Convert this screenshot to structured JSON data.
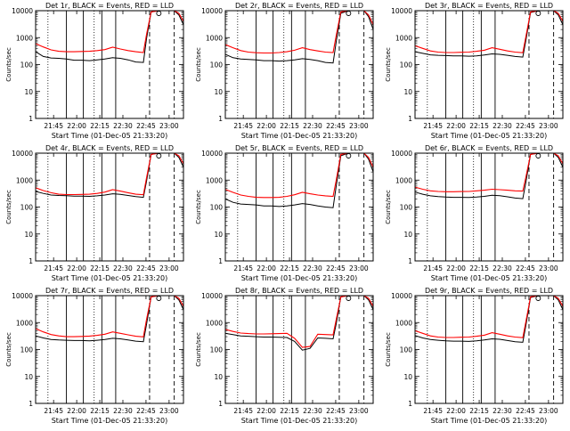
{
  "chart_data": {
    "type": "line",
    "layout": "3x3 grid of log-scale time-series panels",
    "ylabel": "Counts/sec",
    "xlabel": "Start Time (01-Dec-05 21:33:20)",
    "ylim": [
      1,
      10000
    ],
    "y_scale": "log",
    "y_ticks": [
      1,
      10,
      100,
      1000,
      10000
    ],
    "y_tick_labels": [
      "1",
      "10",
      "100",
      "1000",
      "10000"
    ],
    "x_unit": "minutes since 21:33:20",
    "xlim": [
      0,
      96
    ],
    "x_ticks": [
      11.67,
      26.67,
      41.67,
      56.67,
      71.67,
      86.67
    ],
    "x_tick_labels": [
      "21:45",
      "22:00",
      "22:15",
      "22:30",
      "22:45",
      "23:00"
    ],
    "series_colors": {
      "events": "#000000",
      "lld": "#ff0000"
    },
    "panels": [
      {
        "title": "Det 1r, BLACK = Events, RED = LLD",
        "x": [
          0,
          5,
          10,
          15,
          20,
          25,
          30,
          35,
          40,
          45,
          50,
          55,
          60,
          65,
          70,
          72,
          75,
          80,
          85,
          90,
          93,
          96
        ],
        "events": [
          300,
          200,
          175,
          170,
          160,
          145,
          145,
          140,
          150,
          160,
          180,
          170,
          150,
          125,
          120,
          900,
          9000,
          10000,
          10000,
          10000,
          7000,
          3000
        ],
        "lld": [
          600,
          450,
          350,
          310,
          300,
          300,
          305,
          310,
          330,
          360,
          440,
          380,
          330,
          300,
          280,
          1300,
          9000,
          10000,
          10000,
          10000,
          8000,
          4000
        ],
        "solid_lines": [
          20,
          31,
          43,
          52
        ],
        "dotted_lines": [
          8,
          38
        ],
        "dashed_lines": [
          74,
          90
        ]
      },
      {
        "title": "Det 2r, BLACK = Events, RED = LLD",
        "x": [
          0,
          5,
          10,
          15,
          20,
          25,
          30,
          35,
          40,
          45,
          50,
          55,
          60,
          65,
          70,
          72,
          75,
          80,
          85,
          90,
          93,
          96
        ],
        "events": [
          240,
          180,
          160,
          155,
          150,
          140,
          140,
          135,
          140,
          150,
          165,
          155,
          140,
          120,
          115,
          700,
          8000,
          10000,
          10000,
          10000,
          6000,
          2000
        ],
        "lld": [
          550,
          420,
          330,
          290,
          275,
          270,
          270,
          280,
          300,
          340,
          420,
          360,
          320,
          290,
          280,
          1200,
          9000,
          10000,
          10000,
          10000,
          7000,
          3000
        ],
        "solid_lines": [
          20,
          31,
          43,
          52
        ],
        "dotted_lines": [
          8,
          38
        ],
        "dashed_lines": [
          74,
          90
        ]
      },
      {
        "title": "Det 3r, BLACK = Events, RED = LLD",
        "x": [
          0,
          5,
          10,
          15,
          20,
          25,
          30,
          35,
          40,
          45,
          50,
          55,
          60,
          65,
          70,
          72,
          75,
          80,
          85,
          90,
          93,
          96
        ],
        "events": [
          300,
          260,
          230,
          220,
          215,
          210,
          210,
          205,
          210,
          225,
          250,
          240,
          220,
          200,
          190,
          800,
          8500,
          10000,
          10000,
          10000,
          7000,
          3000
        ],
        "lld": [
          500,
          400,
          320,
          290,
          280,
          280,
          285,
          290,
          310,
          340,
          420,
          370,
          320,
          290,
          275,
          1100,
          9000,
          10000,
          10000,
          10000,
          8000,
          4000
        ],
        "solid_lines": [
          20,
          31,
          43,
          52
        ],
        "dotted_lines": [
          8,
          38
        ],
        "dashed_lines": [
          74,
          90
        ]
      },
      {
        "title": "Det 4r, BLACK = Events, RED = LLD",
        "x": [
          0,
          5,
          10,
          15,
          20,
          25,
          30,
          35,
          40,
          45,
          50,
          55,
          60,
          65,
          70,
          72,
          75,
          80,
          85,
          90,
          93,
          96
        ],
        "events": [
          380,
          320,
          280,
          270,
          265,
          255,
          255,
          250,
          260,
          280,
          310,
          295,
          270,
          245,
          230,
          900,
          9000,
          10000,
          10000,
          10000,
          7000,
          3000
        ],
        "lld": [
          520,
          410,
          340,
          300,
          290,
          290,
          295,
          300,
          320,
          360,
          440,
          390,
          340,
          300,
          285,
          1200,
          9000,
          10000,
          10000,
          10000,
          8000,
          4000
        ],
        "solid_lines": [
          20,
          31,
          43,
          52
        ],
        "dotted_lines": [
          8,
          38
        ],
        "dashed_lines": [
          74,
          90
        ]
      },
      {
        "title": "Det 5r, BLACK = Events, RED = LLD",
        "x": [
          0,
          5,
          10,
          15,
          20,
          25,
          30,
          35,
          40,
          45,
          50,
          55,
          60,
          65,
          70,
          72,
          75,
          80,
          85,
          90,
          93,
          96
        ],
        "events": [
          200,
          150,
          130,
          125,
          120,
          110,
          110,
          105,
          110,
          120,
          135,
          125,
          110,
          100,
          95,
          600,
          8000,
          10000,
          10000,
          10000,
          6000,
          2000
        ],
        "lld": [
          450,
          350,
          280,
          250,
          230,
          225,
          225,
          230,
          250,
          285,
          350,
          310,
          280,
          260,
          250,
          1000,
          9000,
          10000,
          10000,
          10000,
          7000,
          3000
        ],
        "solid_lines": [
          20,
          31,
          43,
          52
        ],
        "dotted_lines": [
          8,
          38
        ],
        "dashed_lines": [
          74,
          90
        ]
      },
      {
        "title": "Det 6r, BLACK = Events, RED = LLD",
        "x": [
          0,
          5,
          10,
          15,
          20,
          25,
          30,
          35,
          40,
          45,
          50,
          55,
          60,
          65,
          70,
          72,
          75,
          80,
          85,
          90,
          93,
          96
        ],
        "events": [
          360,
          300,
          260,
          245,
          235,
          230,
          230,
          225,
          235,
          250,
          275,
          265,
          240,
          215,
          205,
          850,
          9000,
          10000,
          10000,
          10000,
          7000,
          3000
        ],
        "lld": [
          550,
          460,
          400,
          380,
          370,
          370,
          375,
          380,
          400,
          420,
          460,
          440,
          420,
          400,
          390,
          1300,
          9000,
          10000,
          10000,
          10000,
          8000,
          4000
        ],
        "solid_lines": [
          20,
          31,
          43,
          52
        ],
        "dotted_lines": [
          8,
          38
        ],
        "dashed_lines": [
          74,
          90
        ]
      },
      {
        "title": "Det 7r, BLACK = Events, RED = LLD",
        "x": [
          0,
          5,
          10,
          15,
          20,
          25,
          30,
          35,
          40,
          45,
          50,
          55,
          60,
          65,
          70,
          72,
          75,
          80,
          85,
          90,
          93,
          96
        ],
        "events": [
          320,
          270,
          235,
          225,
          220,
          215,
          215,
          210,
          220,
          235,
          260,
          250,
          225,
          205,
          195,
          850,
          9000,
          10000,
          10000,
          10000,
          7000,
          3000
        ],
        "lld": [
          600,
          450,
          360,
          320,
          300,
          300,
          305,
          315,
          335,
          370,
          450,
          400,
          350,
          310,
          295,
          1300,
          9000,
          10000,
          10000,
          10000,
          8000,
          4000
        ],
        "solid_lines": [
          20,
          31,
          43,
          52
        ],
        "dotted_lines": [
          8,
          38
        ],
        "dashed_lines": [
          74,
          90
        ]
      },
      {
        "title": "Det 8r, BLACK = Events, RED = LLD",
        "x": [
          0,
          5,
          10,
          15,
          20,
          25,
          30,
          35,
          40,
          45,
          50,
          55,
          60,
          65,
          70,
          72,
          75,
          80,
          85,
          90,
          93,
          96
        ],
        "events": [
          400,
          360,
          320,
          310,
          300,
          290,
          290,
          285,
          280,
          200,
          95,
          110,
          270,
          260,
          250,
          900,
          9000,
          10000,
          10000,
          10000,
          7000,
          3000
        ],
        "lld": [
          560,
          470,
          410,
          390,
          380,
          380,
          385,
          390,
          400,
          260,
          120,
          130,
          370,
          360,
          350,
          1300,
          9000,
          10000,
          10000,
          10000,
          8000,
          4000
        ],
        "solid_lines": [
          20,
          31,
          43,
          52
        ],
        "dotted_lines": [
          8,
          38
        ],
        "dashed_lines": [
          74,
          90
        ]
      },
      {
        "title": "Det 9r, BLACK = Events, RED = LLD",
        "x": [
          0,
          5,
          10,
          15,
          20,
          25,
          30,
          35,
          40,
          45,
          50,
          55,
          60,
          65,
          70,
          72,
          75,
          80,
          85,
          90,
          93,
          96
        ],
        "events": [
          330,
          270,
          235,
          220,
          210,
          205,
          205,
          200,
          210,
          225,
          250,
          240,
          215,
          195,
          185,
          800,
          8500,
          10000,
          10000,
          10000,
          7000,
          3000
        ],
        "lld": [
          500,
          400,
          320,
          290,
          280,
          280,
          285,
          290,
          310,
          340,
          420,
          370,
          320,
          290,
          275,
          1100,
          9000,
          10000,
          10000,
          10000,
          8000,
          4000
        ],
        "solid_lines": [
          20,
          31,
          43,
          52
        ],
        "dotted_lines": [
          8,
          38
        ],
        "dashed_lines": [
          74,
          90
        ]
      }
    ]
  }
}
